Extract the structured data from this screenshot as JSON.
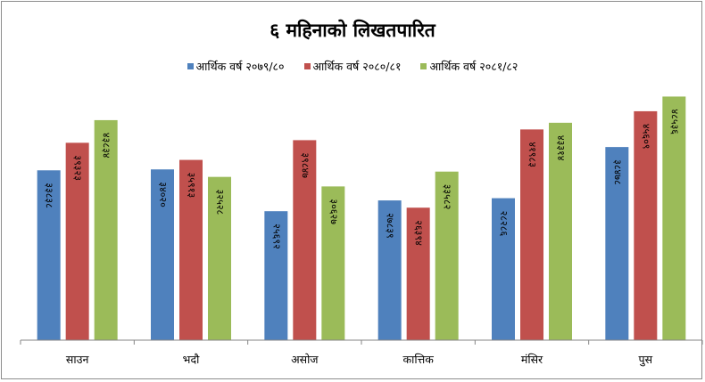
{
  "chart_data": {
    "type": "bar",
    "title": "६ महिनाको लिखतपारित",
    "xlabel": "",
    "ylabel": "",
    "categories": [
      "साउन",
      "भदौ",
      "असोज",
      "कात्तिक",
      "मंसिर",
      "पुस"
    ],
    "series": [
      {
        "name": "आर्थिक वर्ष २०७९/८०",
        "color": "#4f81bd",
        "values": [
          33838,
          34020,
          25692,
          27839,
          28286,
          38478
        ],
        "labels": [
          "३३८३८",
          "३४०२०",
          "२५६९२",
          "२७८३९",
          "२८२८६",
          "३८४७८"
        ]
      },
      {
        "name": "आर्थिक वर्ष २०८०/८१",
        "color": "#c0504d",
        "values": [
          39323,
          35913,
          39847,
          26394,
          41983,
          45609
        ],
        "labels": [
          "३९३२३",
          "३५९१३",
          "३९८४७",
          "२६३९४",
          "४१९८३",
          "४५६०९"
        ]
      },
      {
        "name": "आर्थिक वर्ष २०८१/८२",
        "color": "#9bbb59",
        "values": [
          43834,
          32528,
          30627,
          33582,
          43314,
          48536
        ],
        "labels": [
          "४३८३४",
          "३२५२८",
          "३०६२७",
          "३३५८२",
          "४३३१४",
          "४८५३६"
        ]
      }
    ],
    "ylim": [
      0,
      55000
    ],
    "grid": false,
    "legend_position": "top"
  }
}
